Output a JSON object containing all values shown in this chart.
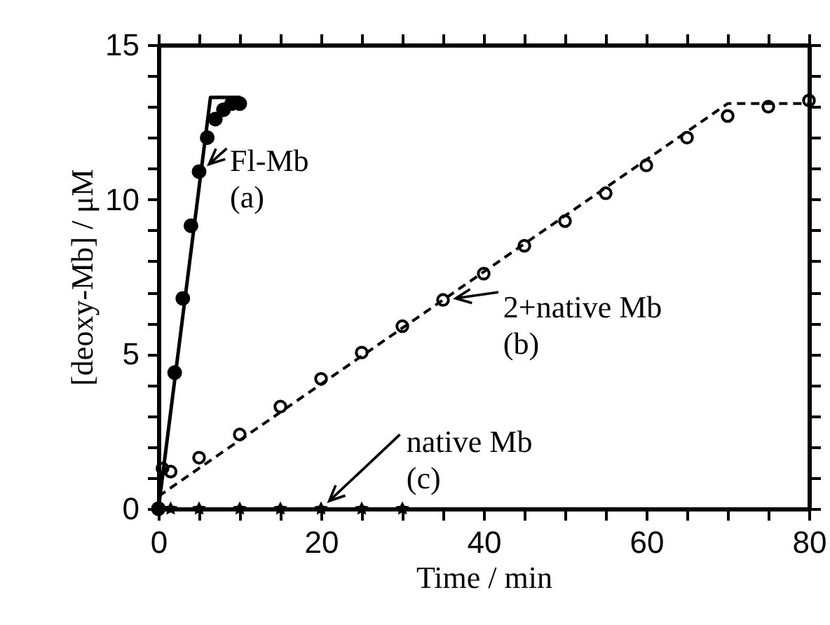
{
  "chart_data": {
    "type": "scatter",
    "xlabel": "Time / min",
    "ylabel": "[deoxy-Mb] / μM",
    "xlim": [
      0,
      80
    ],
    "ylim": [
      0,
      15
    ],
    "xticks": [
      0,
      {
        "value": 5,
        "label": null
      },
      {
        "value": 10,
        "label": null
      },
      {
        "value": 15,
        "label": null
      },
      20,
      {
        "value": 25,
        "label": null
      },
      {
        "value": 30,
        "label": null
      },
      {
        "value": 35,
        "label": null
      },
      40,
      {
        "value": 45,
        "label": null
      },
      {
        "value": 50,
        "label": null
      },
      {
        "value": 55,
        "label": null
      },
      60,
      {
        "value": 65,
        "label": null
      },
      {
        "value": 70,
        "label": null
      },
      {
        "value": 75,
        "label": null
      },
      80
    ],
    "yticks": [
      0,
      {
        "value": 1,
        "label": null
      },
      {
        "value": 2,
        "label": null
      },
      {
        "value": 3,
        "label": null
      },
      {
        "value": 4,
        "label": null
      },
      5,
      {
        "value": 6,
        "label": null
      },
      {
        "value": 7,
        "label": null
      },
      {
        "value": 8,
        "label": null
      },
      {
        "value": 9,
        "label": null
      },
      10,
      {
        "value": 11,
        "label": null
      },
      {
        "value": 12,
        "label": null
      },
      {
        "value": 13,
        "label": null
      },
      {
        "value": 14,
        "label": null
      },
      15
    ],
    "grid": false,
    "series": [
      {
        "marker": "circle",
        "color": "#000000",
        "x": [
          0,
          2,
          3,
          4,
          5,
          6,
          7,
          8,
          9,
          10
        ],
        "values": [
          0,
          4.4,
          6.8,
          9.15,
          10.9,
          12.0,
          12.6,
          12.9,
          13.1,
          13.1
        ]
      },
      {
        "type": "line",
        "line_style": "solid",
        "color": "#000000",
        "x": [
          0,
          6.4,
          10.1
        ],
        "values": [
          0,
          13.3,
          13.3
        ]
      },
      {
        "marker": "circle",
        "color": "#000000",
        "x": [
          0.5,
          1.5,
          5,
          10,
          15,
          20,
          25,
          30,
          35,
          40,
          45,
          50,
          55,
          60,
          65,
          70,
          75,
          80
        ],
        "values": [
          1.3,
          1.2,
          1.65,
          2.4,
          3.3,
          4.2,
          5.05,
          5.9,
          6.75,
          7.6,
          8.5,
          9.3,
          10.2,
          11.1,
          12.0,
          12.7,
          13.0,
          13.2
        ]
      },
      {
        "type": "line",
        "line_style": "dashed",
        "color": "#000000",
        "x": [
          0,
          70,
          80
        ],
        "values": [
          0.4,
          13.1,
          13.1
        ]
      },
      {
        "marker": "star",
        "color": "#000000",
        "x": [
          1.5,
          5,
          10,
          15,
          20,
          25,
          30
        ],
        "values": [
          0,
          0,
          0,
          0,
          0,
          0,
          0
        ]
      }
    ],
    "annotations": [
      {
        "text": "Fl-Mb\n(a)",
        "x": 5.2,
        "y": 10.9
      },
      {
        "text": "2+native Mb\n(b)",
        "x": 35.2,
        "y": 6.75
      },
      {
        "text": "native Mb\n(c)",
        "x": 20,
        "y": 0
      }
    ]
  }
}
